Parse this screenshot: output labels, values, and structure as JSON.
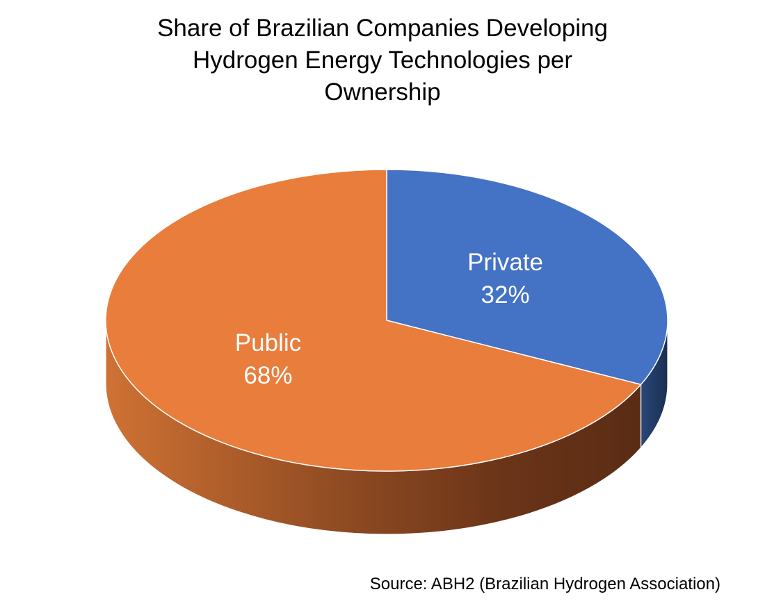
{
  "chart_data": {
    "type": "pie",
    "title": "Share of Brazilian Companies Developing Hydrogen Energy Technologies per Ownership",
    "title_lines": [
      "Share of Brazilian Companies Developing",
      "Hydrogen Energy Technologies per",
      "Ownership"
    ],
    "style": "3d",
    "slices": [
      {
        "label": "Private",
        "value": 32,
        "value_label": "32%",
        "color": "#4472C4",
        "side_color": "#1F3864"
      },
      {
        "label": "Public",
        "value": 68,
        "value_label": "68%",
        "color": "#E97D3C",
        "side_color": "#C4672E"
      }
    ],
    "source": "Source: ABH2 (Brazilian Hydrogen Association)"
  }
}
